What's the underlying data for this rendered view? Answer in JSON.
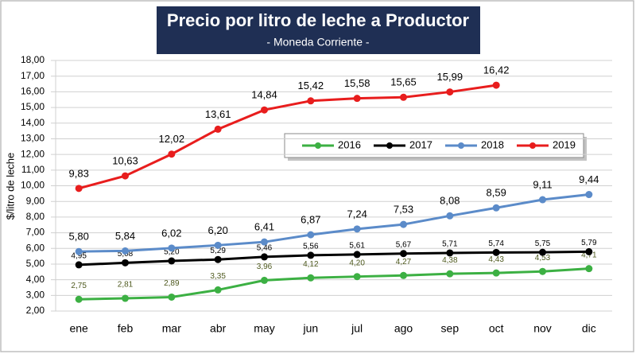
{
  "chart_data": {
    "type": "line",
    "title": "Precio por litro de leche a Productor",
    "subtitle": "- Moneda Corriente -",
    "ylabel": "$/litro de leche",
    "categories": [
      "ene",
      "feb",
      "mar",
      "abr",
      "may",
      "jun",
      "jul",
      "ago",
      "sep",
      "oct",
      "nov",
      "dic"
    ],
    "series": [
      {
        "name": "2016",
        "color": "#3cb043",
        "values": [
          2.75,
          2.81,
          2.89,
          3.35,
          3.96,
          4.12,
          4.2,
          4.27,
          4.38,
          4.43,
          4.53,
          4.71
        ],
        "value_labels": [
          "2,75",
          "2,81",
          "2,89",
          "3,35",
          "3,96",
          "4,12",
          "4,20",
          "4,27",
          "4,38",
          "4,43",
          "4,53",
          "4,71"
        ]
      },
      {
        "name": "2017",
        "color": "#000000",
        "values": [
          4.95,
          5.08,
          5.2,
          5.29,
          5.46,
          5.56,
          5.61,
          5.67,
          5.71,
          5.74,
          5.75,
          5.79
        ],
        "value_labels": [
          "4,95",
          "5,08",
          "5,20",
          "5,29",
          "5,46",
          "5,56",
          "5,61",
          "5,67",
          "5,71",
          "5,74",
          "5,75",
          "5,79"
        ]
      },
      {
        "name": "2018",
        "color": "#5b8bc9",
        "values": [
          5.8,
          5.84,
          6.02,
          6.2,
          6.41,
          6.87,
          7.24,
          7.53,
          8.08,
          8.59,
          9.11,
          9.44
        ],
        "value_labels": [
          "5,80",
          "5,84",
          "6,02",
          "6,20",
          "6,41",
          "6,87",
          "7,24",
          "7,53",
          "8,08",
          "8,59",
          "9,11",
          "9,44"
        ]
      },
      {
        "name": "2019",
        "color": "#e81d1d",
        "values": [
          9.83,
          10.63,
          12.02,
          13.61,
          14.84,
          15.42,
          15.58,
          15.65,
          15.99,
          16.42,
          null,
          null
        ],
        "value_labels": [
          "9,83",
          "10,63",
          "12,02",
          "13,61",
          "14,84",
          "15,42",
          "15,58",
          "15,65",
          "15,99",
          "16,42",
          null,
          null
        ]
      }
    ],
    "ylim": [
      2,
      18
    ],
    "yticks": [
      {
        "value": 2,
        "label": "2,00"
      },
      {
        "value": 3,
        "label": "3,00"
      },
      {
        "value": 4,
        "label": "4,00"
      },
      {
        "value": 5,
        "label": "5,00"
      },
      {
        "value": 6,
        "label": "6,00"
      },
      {
        "value": 7,
        "label": "7,00"
      },
      {
        "value": 8,
        "label": "8,00"
      },
      {
        "value": 9,
        "label": "9,00"
      },
      {
        "value": 10,
        "label": "10,00"
      },
      {
        "value": 11,
        "label": "11,00"
      },
      {
        "value": 12,
        "label": "12,00"
      },
      {
        "value": 13,
        "label": "13,00"
      },
      {
        "value": 14,
        "label": "14,00"
      },
      {
        "value": 15,
        "label": "15,00"
      },
      {
        "value": 16,
        "label": "16,00"
      },
      {
        "value": 17,
        "label": "17,00"
      },
      {
        "value": 18,
        "label": "18,00"
      }
    ],
    "grid": true
  }
}
